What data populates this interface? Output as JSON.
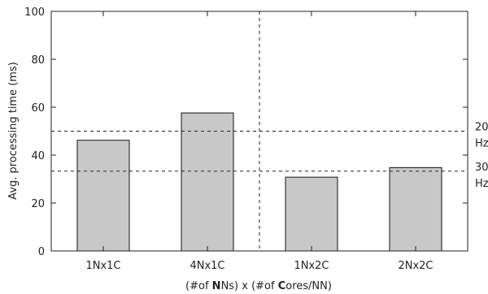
{
  "chart_data": {
    "type": "bar",
    "title": "",
    "ylabel": "Avg. processing time (ms)",
    "xlabel": {
      "parts": [
        {
          "text": "(#of ",
          "bold": false
        },
        {
          "text": "N",
          "bold": true
        },
        {
          "text": "Ns) x (#of ",
          "bold": false
        },
        {
          "text": "C",
          "bold": true
        },
        {
          "text": "ores/NN)",
          "bold": false
        }
      ]
    },
    "categories": [
      "1Nx1C",
      "4Nx1C",
      "1Nx2C",
      "2Nx2C"
    ],
    "values": [
      46.2,
      57.6,
      30.8,
      34.8
    ],
    "ylim": [
      0,
      100
    ],
    "yticks": [
      0,
      20,
      40,
      60,
      80,
      100
    ],
    "grid": false,
    "bar_color": "#c8c8c8",
    "reference_lines": [
      {
        "y": 50,
        "label_lines": [
          "20",
          "Hz"
        ]
      },
      {
        "y": 33.3,
        "label_lines": [
          "30",
          "Hz"
        ]
      }
    ],
    "group_separator": "between 4Nx1C and 1Nx2C"
  }
}
